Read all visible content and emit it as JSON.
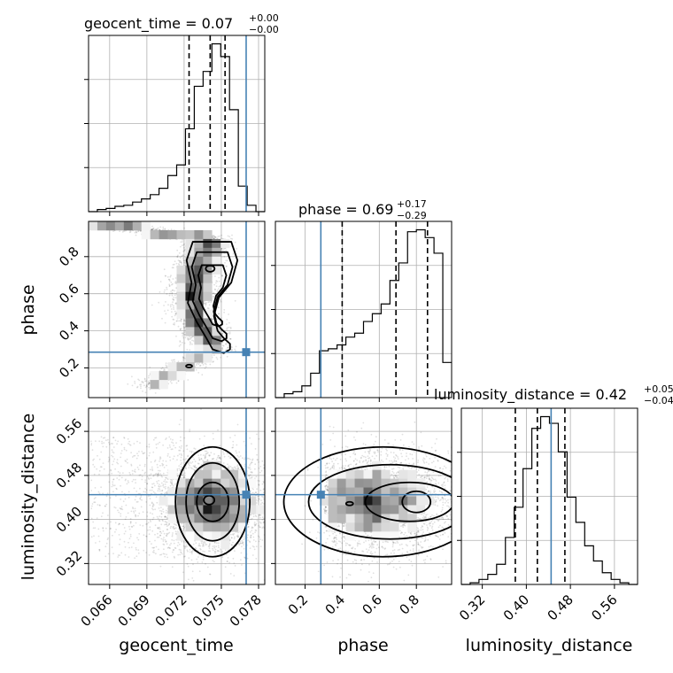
{
  "chart_data": {
    "type": "corner",
    "parameters": [
      "geocent_time",
      "phase",
      "luminosity_distance"
    ],
    "truths": [
      0.077,
      0.285,
      0.445
    ],
    "truth_color": "#4682b4",
    "titles": [
      {
        "base": "geocent_time = 0.07",
        "plus": "+0.00",
        "minus": "−0.00"
      },
      {
        "base": "phase = 0.69",
        "plus": "+0.17",
        "minus": "−0.29"
      },
      {
        "base": "luminosity_distance = 0.42",
        "plus": "+0.05",
        "minus": "−0.04"
      }
    ],
    "axes": {
      "geocent_time": {
        "range": [
          0.0643,
          0.0785
        ],
        "ticks": [
          0.066,
          0.069,
          0.072,
          0.075,
          0.078
        ],
        "tick_labels": [
          "0.066",
          "0.069",
          "0.072",
          "0.075",
          "0.078"
        ]
      },
      "phase": {
        "range": [
          0.04,
          0.99
        ],
        "ticks": [
          0.2,
          0.4,
          0.6,
          0.8
        ],
        "tick_labels": [
          "0.2",
          "0.4",
          "0.6",
          "0.8"
        ]
      },
      "luminosity_distance": {
        "range": [
          0.282,
          0.602
        ],
        "ticks": [
          0.32,
          0.4,
          0.48,
          0.56
        ],
        "tick_labels": [
          "0.32",
          "0.40",
          "0.48",
          "0.56"
        ]
      }
    },
    "quantiles": {
      "geocent_time": [
        0.0724,
        0.0741,
        0.0753
      ],
      "phase": [
        0.4,
        0.69,
        0.86
      ],
      "luminosity_distance": [
        0.38,
        0.42,
        0.47
      ]
    },
    "histograms": {
      "geocent_time": {
        "edges_range": [
          0.0643,
          0.0785
        ],
        "bins": 20,
        "counts": [
          0,
          2,
          3,
          5,
          6,
          9,
          12,
          16,
          22,
          34,
          44,
          78,
          118,
          132,
          158,
          146,
          96,
          24,
          6,
          0
        ]
      },
      "phase": {
        "edges_range": [
          0.04,
          0.99
        ],
        "bins": 20,
        "counts": [
          0,
          4,
          6,
          12,
          25,
          48,
          50,
          54,
          62,
          66,
          78,
          86,
          96,
          120,
          138,
          170,
          172,
          164,
          148,
          36
        ]
      },
      "luminosity_distance": {
        "edges_range": [
          0.282,
          0.602
        ],
        "bins": 20,
        "counts": [
          0,
          2,
          6,
          12,
          24,
          56,
          92,
          138,
          186,
          200,
          192,
          158,
          104,
          74,
          46,
          28,
          14,
          6,
          2,
          0
        ]
      }
    },
    "samples_2d": {
      "phase_vs_geocent_time": {
        "main_cluster": {
          "x": [
            0.0722,
            0.0764
          ],
          "y": [
            0.3,
            0.9
          ]
        },
        "tail": {
          "x": [
            0.0643,
            0.074
          ],
          "y": [
            0.88,
            0.99
          ]
        },
        "lower_tail": {
          "x": [
            0.069,
            0.0735
          ],
          "y": [
            0.1,
            0.28
          ]
        }
      },
      "luminosity_distance_vs_geocent_time": {
        "center": [
          0.0743,
          0.43
        ],
        "spread": [
          0.0022,
          0.045
        ]
      },
      "luminosity_distance_vs_phase": {
        "center": [
          0.68,
          0.43
        ],
        "spread": [
          0.2,
          0.045
        ]
      }
    },
    "grid": true
  }
}
